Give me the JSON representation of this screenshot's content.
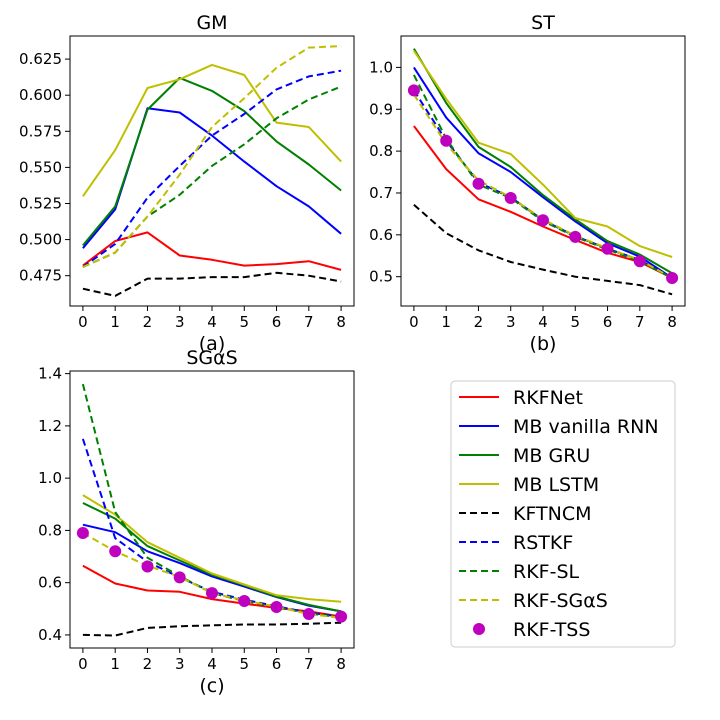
{
  "chart_data": [
    {
      "type": "line",
      "title": "GM",
      "xlabel": "(a)",
      "ylabel": "",
      "x": [
        0,
        1,
        2,
        3,
        4,
        5,
        6,
        7,
        8
      ],
      "xticks": [
        "0",
        "1",
        "2",
        "3",
        "4",
        "5",
        "6",
        "7",
        "8"
      ],
      "yticks": [
        "0.475",
        "0.500",
        "0.525",
        "0.550",
        "0.575",
        "0.600",
        "0.625"
      ],
      "ytick_values": [
        0.475,
        0.5,
        0.525,
        0.55,
        0.575,
        0.6,
        0.625
      ],
      "xlim": [
        -0.4,
        8.4
      ],
      "ylim": [
        0.454,
        0.641
      ],
      "series": [
        {
          "name": "RKFNet",
          "values": [
            0.482,
            0.499,
            0.505,
            0.489,
            0.486,
            0.482,
            0.483,
            0.485,
            0.479
          ]
        },
        {
          "name": "MB vanilla RNN",
          "values": [
            0.494,
            0.521,
            0.591,
            0.588,
            0.572,
            0.554,
            0.537,
            0.523,
            0.504
          ]
        },
        {
          "name": "MB GRU",
          "values": [
            0.496,
            0.523,
            0.59,
            0.612,
            0.603,
            0.589,
            0.568,
            0.552,
            0.534
          ]
        },
        {
          "name": "MB LSTM",
          "values": [
            0.53,
            0.562,
            0.605,
            0.611,
            0.621,
            0.614,
            0.581,
            0.578,
            0.554
          ]
        },
        {
          "name": "KFTNCM",
          "values": [
            0.466,
            0.461,
            0.473,
            0.473,
            0.474,
            0.474,
            0.477,
            0.475,
            0.471
          ]
        },
        {
          "name": "RSTKF",
          "values": [
            0.481,
            0.497,
            0.529,
            0.551,
            0.572,
            0.587,
            0.604,
            0.613,
            0.617
          ]
        },
        {
          "name": "RKF-SL",
          "values": [
            0.481,
            0.491,
            0.516,
            0.531,
            0.551,
            0.566,
            0.584,
            0.597,
            0.606
          ]
        },
        {
          "name": "RKF-SGαS",
          "values": [
            0.481,
            0.491,
            0.516,
            0.545,
            0.578,
            0.598,
            0.619,
            0.633,
            0.634
          ]
        }
      ]
    },
    {
      "type": "line",
      "title": "ST",
      "xlabel": "(b)",
      "ylabel": "",
      "x": [
        0,
        1,
        2,
        3,
        4,
        5,
        6,
        7,
        8
      ],
      "xticks": [
        "0",
        "1",
        "2",
        "3",
        "4",
        "5",
        "6",
        "7",
        "8"
      ],
      "yticks": [
        "0.5",
        "0.6",
        "0.7",
        "0.8",
        "0.9",
        "1.0"
      ],
      "ytick_values": [
        0.5,
        0.6,
        0.7,
        0.8,
        0.9,
        1.0
      ],
      "xlim": [
        -0.4,
        8.4
      ],
      "ylim": [
        0.43,
        1.075
      ],
      "series": [
        {
          "name": "RKFNet",
          "values": [
            0.86,
            0.757,
            0.685,
            0.655,
            0.62,
            0.588,
            0.557,
            0.535,
            0.497
          ]
        },
        {
          "name": "MB vanilla RNN",
          "values": [
            1.0,
            0.88,
            0.795,
            0.75,
            0.69,
            0.632,
            0.58,
            0.548,
            0.497
          ]
        },
        {
          "name": "MB GRU",
          "values": [
            1.045,
            0.915,
            0.81,
            0.762,
            0.695,
            0.637,
            0.585,
            0.553,
            0.508
          ]
        },
        {
          "name": "MB LSTM",
          "values": [
            1.04,
            0.925,
            0.82,
            0.793,
            0.72,
            0.64,
            0.62,
            0.573,
            0.547
          ]
        },
        {
          "name": "KFTNCM",
          "values": [
            0.672,
            0.604,
            0.563,
            0.535,
            0.517,
            0.5,
            0.49,
            0.48,
            0.458
          ]
        },
        {
          "name": "RSTKF",
          "values": [
            0.945,
            0.825,
            0.725,
            0.69,
            0.635,
            0.597,
            0.567,
            0.54,
            0.497
          ]
        },
        {
          "name": "RKF-SL",
          "values": [
            0.982,
            0.83,
            0.72,
            0.688,
            0.633,
            0.595,
            0.565,
            0.537,
            0.497
          ]
        },
        {
          "name": "RKF-SGαS",
          "values": [
            0.935,
            0.817,
            0.73,
            0.69,
            0.637,
            0.598,
            0.568,
            0.54,
            0.497
          ]
        }
      ],
      "markers": {
        "name": "RKF-TSS",
        "values": [
          0.945,
          0.825,
          0.722,
          0.688,
          0.635,
          0.595,
          0.567,
          0.537,
          0.497
        ]
      }
    },
    {
      "type": "line",
      "title": "SGαS",
      "xlabel": "(c)",
      "ylabel": "",
      "x": [
        0,
        1,
        2,
        3,
        4,
        5,
        6,
        7,
        8
      ],
      "xticks": [
        "0",
        "1",
        "2",
        "3",
        "4",
        "5",
        "6",
        "7",
        "8"
      ],
      "yticks": [
        "0.4",
        "0.6",
        "0.8",
        "1.0",
        "1.2",
        "1.4"
      ],
      "ytick_values": [
        0.4,
        0.6,
        0.8,
        1.0,
        1.2,
        1.4
      ],
      "xlim": [
        -0.4,
        8.4
      ],
      "ylim": [
        0.35,
        1.41
      ],
      "series": [
        {
          "name": "RKFNet",
          "values": [
            0.665,
            0.597,
            0.57,
            0.565,
            0.537,
            0.52,
            0.503,
            0.49,
            0.47
          ]
        },
        {
          "name": "MB vanilla RNN",
          "values": [
            0.822,
            0.793,
            0.72,
            0.675,
            0.624,
            0.585,
            0.545,
            0.512,
            0.49
          ]
        },
        {
          "name": "MB GRU",
          "values": [
            0.905,
            0.845,
            0.74,
            0.685,
            0.63,
            0.59,
            0.547,
            0.515,
            0.49
          ]
        },
        {
          "name": "MB LSTM",
          "values": [
            0.935,
            0.86,
            0.755,
            0.695,
            0.635,
            0.593,
            0.552,
            0.537,
            0.527
          ]
        },
        {
          "name": "KFTNCM",
          "values": [
            0.4,
            0.398,
            0.427,
            0.433,
            0.437,
            0.44,
            0.44,
            0.443,
            0.447
          ]
        },
        {
          "name": "RSTKF",
          "values": [
            1.15,
            0.77,
            0.68,
            0.62,
            0.565,
            0.535,
            0.51,
            0.485,
            0.47
          ]
        },
        {
          "name": "RKF-SL",
          "values": [
            1.36,
            0.87,
            0.695,
            0.625,
            0.56,
            0.53,
            0.507,
            0.482,
            0.468
          ]
        },
        {
          "name": "RKF-SGαS",
          "values": [
            0.79,
            0.72,
            0.665,
            0.622,
            0.56,
            0.532,
            0.508,
            0.48,
            0.465
          ]
        }
      ],
      "markers": {
        "name": "RKF-TSS",
        "values": [
          0.79,
          0.72,
          0.662,
          0.62,
          0.56,
          0.53,
          0.507,
          0.48,
          0.47
        ]
      }
    }
  ],
  "legend": {
    "placement": "bottom-right",
    "entries": [
      {
        "name": "RKFNet",
        "color": "#ff0000",
        "style": "solid"
      },
      {
        "name": "MB vanilla RNN",
        "color": "#0000ff",
        "style": "solid"
      },
      {
        "name": "MB GRU",
        "color": "#008000",
        "style": "solid"
      },
      {
        "name": "MB LSTM",
        "color": "#bfbf00",
        "style": "solid"
      },
      {
        "name": "KFTNCM",
        "color": "#000000",
        "style": "dashed"
      },
      {
        "name": "RSTKF",
        "color": "#0000ff",
        "style": "dashed"
      },
      {
        "name": "RKF-SL",
        "color": "#008000",
        "style": "dashed"
      },
      {
        "name": "RKF-SGαS",
        "color": "#bfbf00",
        "style": "dashed"
      },
      {
        "name": "RKF-TSS",
        "color": "#bf00bf",
        "style": "marker"
      }
    ]
  }
}
